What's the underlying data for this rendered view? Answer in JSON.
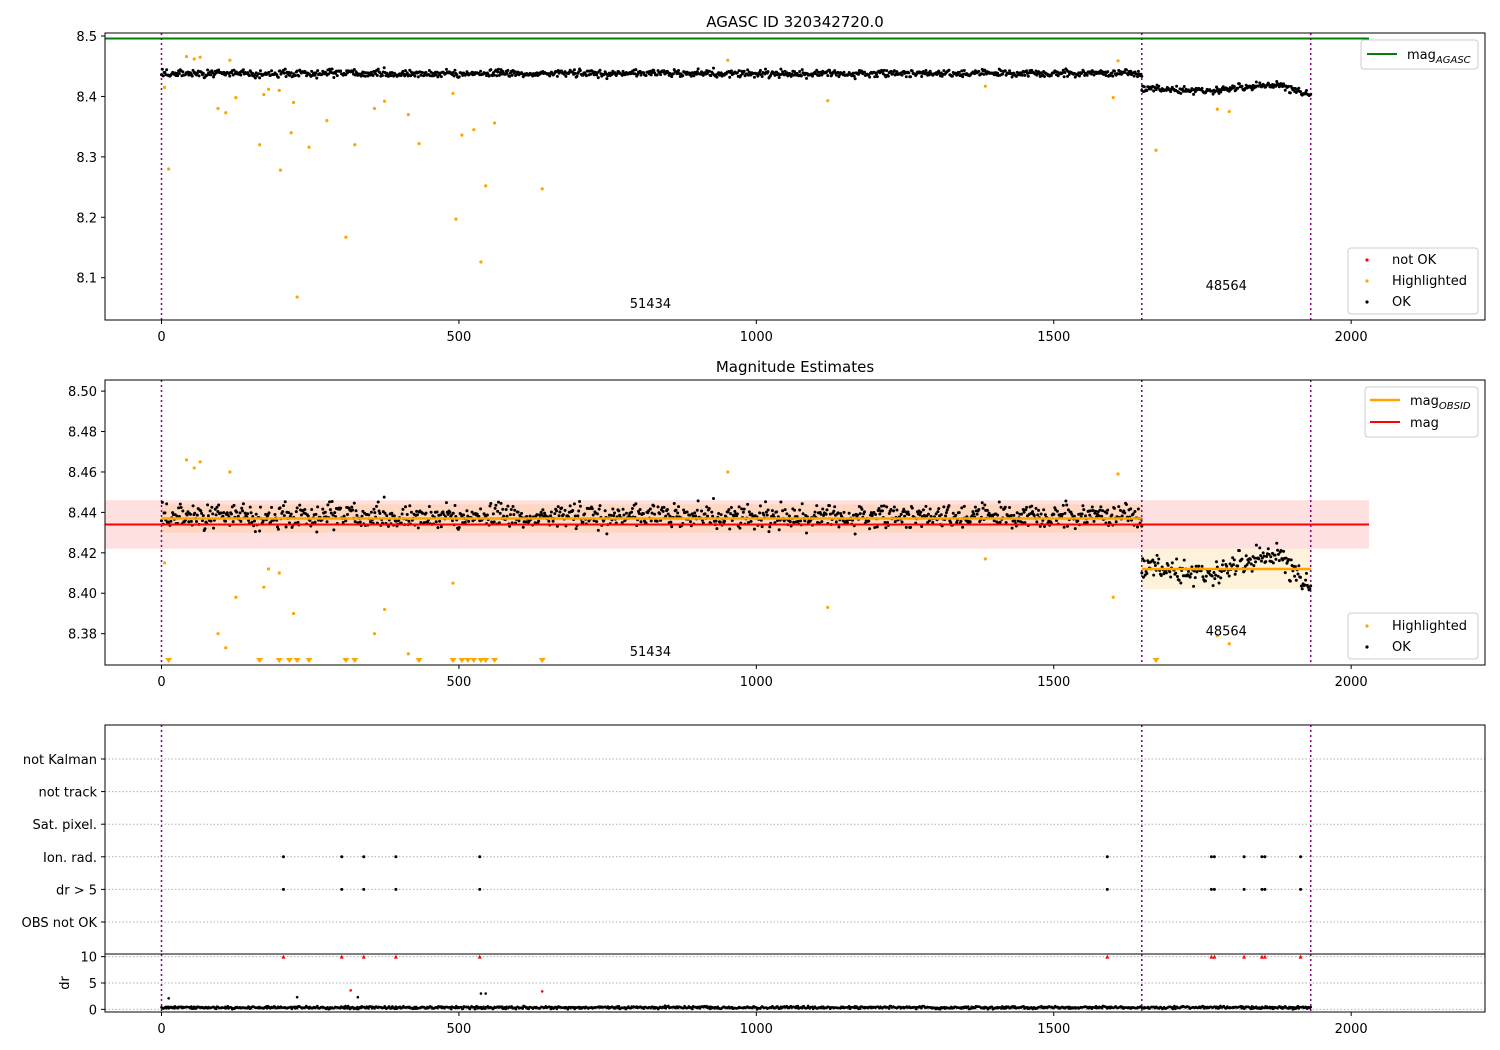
{
  "chart_data": [
    {
      "id": "mag",
      "type": "scatter",
      "title": "AGASC ID 320342720.0",
      "xlabel": "",
      "ylabel": "",
      "xlim": [
        -95,
        2225
      ],
      "ylim": [
        8.03,
        8.505
      ],
      "xticks": [
        0,
        500,
        1000,
        1500,
        2000
      ],
      "xtick_labels": [
        "0",
        "500",
        "1000",
        "1500",
        "2000"
      ],
      "yticks": [
        8.1,
        8.2,
        8.3,
        8.4,
        8.5
      ],
      "ytick_labels": [
        "8.1",
        "8.2",
        "8.3",
        "8.4",
        "8.5"
      ],
      "grid": false,
      "obs_boundaries": [
        0,
        1648,
        1932
      ],
      "obs_labels": [
        {
          "text": "51434",
          "x": 822,
          "y": 8.05
        },
        {
          "text": "48564",
          "x": 1790,
          "y": 8.08
        }
      ],
      "agasc_line": {
        "name": "mag_AGASC",
        "value": 8.496,
        "x_range": [
          -95,
          2030
        ],
        "color": "#008000"
      },
      "ok_segments": [
        {
          "x_start": 0,
          "x_end": 1648,
          "mean": 8.438,
          "noise": 0.006,
          "n": 1150
        },
        {
          "x_start": 1648,
          "x_end": 1932,
          "mean": 8.411,
          "noise": 0.006,
          "n": 200,
          "trend": [
            8.413,
            8.411,
            8.408,
            8.416,
            8.42,
            8.403
          ]
        }
      ],
      "highlighted_points": [
        [
          5,
          8.415
        ],
        [
          12,
          8.28
        ],
        [
          42,
          8.466
        ],
        [
          55,
          8.462
        ],
        [
          65,
          8.465
        ],
        [
          95,
          8.38
        ],
        [
          108,
          8.373
        ],
        [
          115,
          8.46
        ],
        [
          125,
          8.398
        ],
        [
          165,
          8.32
        ],
        [
          172,
          8.403
        ],
        [
          180,
          8.412
        ],
        [
          198,
          8.41
        ],
        [
          200,
          8.278
        ],
        [
          218,
          8.34
        ],
        [
          222,
          8.39
        ],
        [
          228,
          8.068
        ],
        [
          248,
          8.316
        ],
        [
          278,
          8.36
        ],
        [
          310,
          8.167
        ],
        [
          325,
          8.32
        ],
        [
          358,
          8.38
        ],
        [
          375,
          8.392
        ],
        [
          415,
          8.37
        ],
        [
          433,
          8.322
        ],
        [
          490,
          8.405
        ],
        [
          495,
          8.197
        ],
        [
          505,
          8.336
        ],
        [
          525,
          8.345
        ],
        [
          537,
          8.126
        ],
        [
          545,
          8.252
        ],
        [
          560,
          8.356
        ],
        [
          640,
          8.247
        ],
        [
          952,
          8.46
        ],
        [
          1120,
          8.393
        ],
        [
          1385,
          8.417
        ],
        [
          1600,
          8.398
        ],
        [
          1608,
          8.459
        ],
        [
          1672,
          8.311
        ],
        [
          1775,
          8.379
        ],
        [
          1795,
          8.375
        ]
      ],
      "legend_mag": {
        "entries": [
          "mag_AGASC"
        ],
        "placement": "upper right"
      },
      "legend_flags": {
        "entries": [
          "not OK",
          "Highlighted",
          "OK"
        ],
        "placement": "lower right"
      },
      "colors": {
        "ok": "#000000",
        "highlighted": "#ffa500",
        "not_ok": "#ff0000",
        "boundary": "#800080"
      }
    },
    {
      "id": "estimates",
      "type": "scatter",
      "title": "Magnitude Estimates",
      "xlabel": "",
      "ylabel": "",
      "xlim": [
        -95,
        2225
      ],
      "ylim": [
        8.3645,
        8.5055
      ],
      "xticks": [
        0,
        500,
        1000,
        1500,
        2000
      ],
      "xtick_labels": [
        "0",
        "500",
        "1000",
        "1500",
        "2000"
      ],
      "yticks": [
        8.38,
        8.4,
        8.42,
        8.44,
        8.46,
        8.48,
        8.5
      ],
      "ytick_labels": [
        "8.38",
        "8.40",
        "8.42",
        "8.44",
        "8.46",
        "8.48",
        "8.50"
      ],
      "grid": false,
      "obs_labels": [
        {
          "text": "51434",
          "x": 822,
          "y": 8.369
        },
        {
          "text": "48564",
          "x": 1790,
          "y": 8.379
        }
      ],
      "mag_line": {
        "name": "mag",
        "value": 8.434,
        "band": [
          8.422,
          8.446
        ],
        "x_range": [
          -95,
          2030
        ],
        "color": "#ff0000"
      },
      "mag_obsid": [
        {
          "name": "mag_OBSID",
          "x_start": 0,
          "x_end": 1648,
          "value": 8.437,
          "band": [
            8.43,
            8.444
          ]
        },
        {
          "name": "mag_OBSID",
          "x_start": 1648,
          "x_end": 1932,
          "value": 8.412,
          "band": [
            8.402,
            8.422
          ]
        }
      ],
      "below_range_markers": [
        12,
        165,
        198,
        215,
        228,
        248,
        310,
        325,
        433,
        490,
        505,
        515,
        525,
        537,
        545,
        560,
        640,
        1672
      ],
      "legend_mag": {
        "entries": [
          "mag_OBSID",
          "mag"
        ],
        "placement": "upper right"
      },
      "legend_flags": {
        "entries": [
          "Highlighted",
          "OK"
        ],
        "placement": "lower right"
      }
    },
    {
      "id": "flags",
      "type": "scatter",
      "title": "",
      "xlim": [
        -95,
        2225
      ],
      "categories": [
        "not Kalman",
        "not track",
        "Sat. pixel.",
        "Ion. rad.",
        "dr > 5",
        "OBS not OK"
      ],
      "flag_points": {
        "Ion. rad.": [
          205,
          303,
          340,
          394,
          535,
          1590,
          1765,
          1770,
          1820,
          1850,
          1855,
          1915
        ],
        "dr > 5": [
          205,
          303,
          340,
          394,
          535,
          1590,
          1765,
          1770,
          1820,
          1850,
          1855,
          1915
        ]
      },
      "grid": true
    },
    {
      "id": "dr",
      "type": "scatter",
      "title": "",
      "xlabel": "",
      "ylabel": "dr",
      "xlim": [
        -95,
        2225
      ],
      "ylim": [
        -0.5,
        10.5
      ],
      "xticks": [
        0,
        500,
        1000,
        1500,
        2000
      ],
      "xtick_labels": [
        "0",
        "500",
        "1000",
        "1500",
        "2000"
      ],
      "yticks": [
        0,
        5,
        10
      ],
      "ytick_labels": [
        "0",
        "5",
        "10"
      ],
      "grid": true,
      "baseline": {
        "mean": 0.35,
        "noise": 0.25
      },
      "outlier_points": [
        [
          12,
          2.1
        ],
        [
          228,
          2.3
        ],
        [
          318,
          3.6
        ],
        [
          330,
          2.3
        ],
        [
          537,
          3.0
        ],
        [
          545,
          3.0
        ],
        [
          640,
          3.4
        ]
      ],
      "clipped_points": [
        205,
        303,
        340,
        394,
        535,
        1590,
        1765,
        1770,
        1820,
        1850,
        1855,
        1915
      ]
    }
  ]
}
